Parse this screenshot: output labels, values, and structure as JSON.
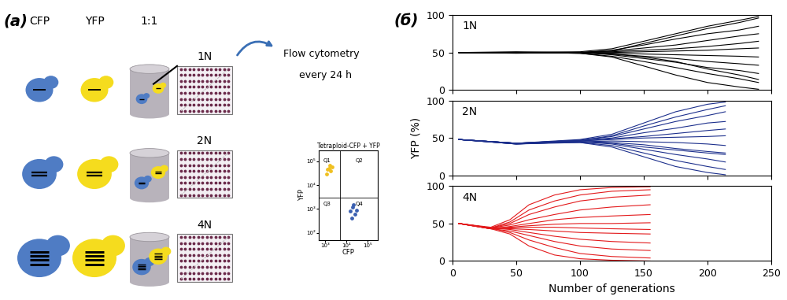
{
  "panel_labels": [
    "(a)",
    "(б)"
  ],
  "diagram": {
    "headers": [
      "CFP",
      "YFP",
      "1:1"
    ],
    "rows": [
      {
        "label": "1N",
        "bars": 1
      },
      {
        "label": "2N",
        "bars": 2
      },
      {
        "label": "4N",
        "bars": 4
      }
    ],
    "colors": {
      "CFP": "#4f7cc4",
      "YFP": "#f5dc1e"
    },
    "flow_text": [
      "Flow cytometry",
      "every 24 h"
    ],
    "inset": {
      "type": "scatter",
      "title": "Tetraploid-CFP + YFP",
      "x_label": "CFP",
      "y_label": "YFP",
      "log": true,
      "xlim": [
        500,
        300000
      ],
      "ylim": [
        50,
        300000
      ],
      "xticks": [
        {
          "value": 1000,
          "label": "10³"
        },
        {
          "value": 10000,
          "label": "10⁴"
        },
        {
          "value": 100000,
          "label": "10⁵"
        }
      ],
      "yticks": [
        {
          "value": 100,
          "label": "10²"
        },
        {
          "value": 1000,
          "label": "10³"
        },
        {
          "value": 10000,
          "label": "10⁴"
        },
        {
          "value": 100000,
          "label": "10⁵"
        }
      ],
      "quadrants": [
        "Q1",
        "Q2",
        "Q3",
        "Q4"
      ],
      "gates": {
        "x": 5000,
        "y": 3000
      },
      "series": [
        {
          "color": "#f0c020",
          "x": [
            1200,
            1500,
            1800,
            2200,
            1600,
            1300
          ],
          "y": [
            30000,
            50000,
            40000,
            60000,
            70000,
            45000
          ]
        },
        {
          "color": "#3a5fb0",
          "x": [
            15000,
            20000,
            25000,
            18000,
            30000,
            22000
          ],
          "y": [
            800,
            1200,
            600,
            400,
            900,
            1500
          ]
        }
      ]
    }
  },
  "chart_data": [
    {
      "type": "line",
      "annotation": "1N",
      "color": "#000000",
      "tick_labels": "y",
      "xlim": [
        0,
        250
      ],
      "ylim": [
        0,
        100
      ],
      "xticks": [
        0,
        50,
        100,
        150,
        200,
        250
      ],
      "yticks": [
        0,
        50,
        100
      ],
      "x": [
        5,
        50,
        100,
        125,
        150,
        175,
        200,
        225,
        240
      ],
      "series": [
        {
          "values": [
            50,
            50,
            51,
            55,
            65,
            75,
            85,
            93,
            98
          ]
        },
        {
          "values": [
            50,
            50,
            50,
            53,
            60,
            68,
            75,
            80,
            85
          ]
        },
        {
          "values": [
            50,
            51,
            50,
            52,
            56,
            60,
            66,
            72,
            75
          ]
        },
        {
          "values": [
            50,
            50,
            50,
            51,
            53,
            55,
            58,
            62,
            65
          ]
        },
        {
          "values": [
            50,
            50,
            50,
            50,
            51,
            52,
            53,
            55,
            56
          ]
        },
        {
          "values": [
            50,
            50,
            49,
            49,
            48,
            47,
            46,
            45,
            44
          ]
        },
        {
          "values": [
            50,
            50,
            50,
            48,
            45,
            42,
            38,
            35,
            33
          ]
        },
        {
          "values": [
            50,
            49,
            50,
            47,
            42,
            37,
            30,
            26,
            22
          ]
        },
        {
          "values": [
            50,
            50,
            49,
            45,
            38,
            30,
            22,
            15,
            10
          ]
        },
        {
          "values": [
            50,
            50,
            49,
            44,
            32,
            20,
            10,
            4,
            1
          ]
        },
        {
          "values": [
            50,
            50,
            50,
            52,
            62,
            72,
            82,
            90,
            96
          ]
        },
        {
          "values": [
            50,
            50,
            50,
            48,
            44,
            38,
            28,
            20,
            14
          ]
        }
      ]
    },
    {
      "type": "line",
      "annotation": "2N",
      "color": "#1c2f8c",
      "tick_labels": "y",
      "y_label": "YFP (%)",
      "xlim": [
        0,
        250
      ],
      "ylim": [
        0,
        100
      ],
      "xticks": [
        0,
        50,
        100,
        150,
        200,
        250
      ],
      "yticks": [
        0,
        50,
        100
      ],
      "x": [
        5,
        50,
        100,
        125,
        150,
        175,
        200,
        214
      ],
      "series": [
        {
          "values": [
            48,
            43,
            48,
            55,
            70,
            85,
            95,
            98
          ]
        },
        {
          "values": [
            48,
            43,
            47,
            52,
            62,
            72,
            80,
            85
          ]
        },
        {
          "values": [
            48,
            43,
            47,
            50,
            57,
            63,
            70,
            72
          ]
        },
        {
          "values": [
            48,
            42,
            46,
            49,
            52,
            56,
            60,
            62
          ]
        },
        {
          "values": [
            48,
            43,
            46,
            48,
            50,
            51,
            52,
            53
          ]
        },
        {
          "values": [
            48,
            43,
            45,
            46,
            45,
            44,
            42,
            40
          ]
        },
        {
          "values": [
            48,
            42,
            45,
            43,
            38,
            34,
            30,
            28
          ]
        },
        {
          "values": [
            48,
            43,
            45,
            42,
            35,
            28,
            22,
            18
          ]
        },
        {
          "values": [
            48,
            42,
            44,
            40,
            30,
            20,
            12,
            8
          ]
        },
        {
          "values": [
            48,
            43,
            44,
            38,
            25,
            12,
            4,
            1
          ]
        },
        {
          "values": [
            48,
            43,
            47,
            53,
            66,
            78,
            88,
            93
          ]
        },
        {
          "values": [
            48,
            42,
            45,
            44,
            41,
            36,
            32,
            30
          ]
        }
      ]
    },
    {
      "type": "line",
      "annotation": "4N",
      "color": "#e31a1c",
      "x_label": "Number of generations",
      "xlim": [
        0,
        250
      ],
      "ylim": [
        0,
        100
      ],
      "xticks": [
        0,
        50,
        100,
        150,
        200,
        250
      ],
      "yticks": [
        0,
        50,
        100
      ],
      "x": [
        5,
        30,
        45,
        60,
        80,
        100,
        125,
        155
      ],
      "series": [
        {
          "values": [
            50,
            45,
            55,
            75,
            88,
            95,
            98,
            99
          ]
        },
        {
          "values": [
            50,
            44,
            50,
            62,
            72,
            80,
            85,
            88
          ]
        },
        {
          "values": [
            50,
            44,
            48,
            55,
            62,
            68,
            72,
            75
          ]
        },
        {
          "values": [
            50,
            43,
            46,
            50,
            55,
            58,
            60,
            62
          ]
        },
        {
          "values": [
            50,
            44,
            45,
            47,
            49,
            50,
            50,
            51
          ]
        },
        {
          "values": [
            50,
            43,
            43,
            42,
            40,
            38,
            37,
            36
          ]
        },
        {
          "values": [
            50,
            44,
            42,
            38,
            33,
            29,
            26,
            24
          ]
        },
        {
          "values": [
            50,
            43,
            40,
            34,
            26,
            20,
            16,
            14
          ]
        },
        {
          "values": [
            50,
            44,
            38,
            28,
            18,
            10,
            6,
            4
          ]
        },
        {
          "values": [
            50,
            43,
            36,
            20,
            8,
            3,
            1,
            0
          ]
        },
        {
          "values": [
            50,
            44,
            52,
            68,
            80,
            88,
            93,
            95
          ]
        },
        {
          "values": [
            50,
            43,
            44,
            45,
            45,
            44,
            43,
            42
          ]
        }
      ]
    }
  ]
}
